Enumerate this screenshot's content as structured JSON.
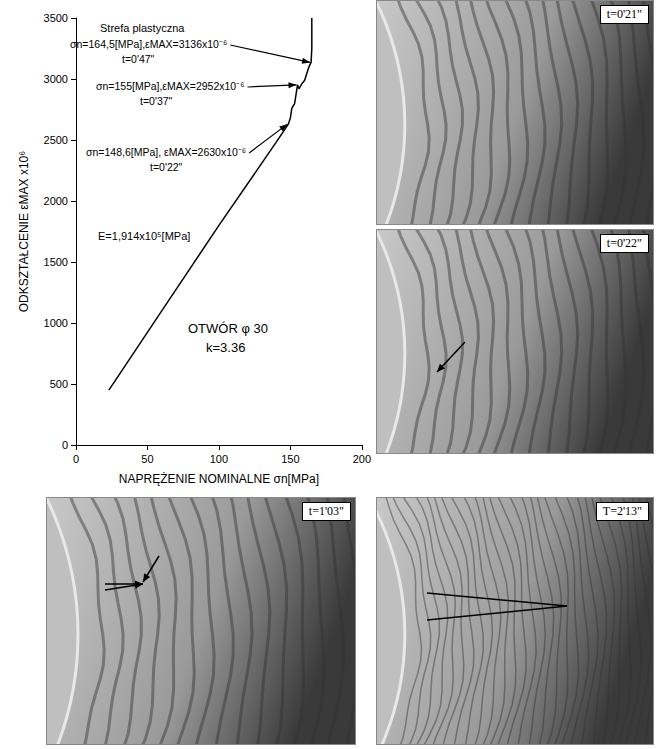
{
  "chart_data": {
    "type": "line",
    "x_label": "NAPRĘŻENIE NOMINALNE σn[MPa]",
    "y_label": "ODKSZTAŁCENIE εMAX x10⁶",
    "x": [
      23,
      60,
      100,
      140,
      148.6,
      150,
      151,
      153,
      155,
      156,
      158,
      160,
      163,
      164.5,
      165,
      165
    ],
    "values": [
      450,
      1100,
      1800,
      2480,
      2630,
      2680,
      2760,
      2800,
      2952,
      2920,
      2960,
      2990,
      3100,
      3136,
      3250,
      3500
    ],
    "color": "#000000",
    "xlim": [
      0,
      200
    ],
    "xticks": [
      0,
      50,
      100,
      150,
      200
    ],
    "ylim": [
      0,
      3500
    ],
    "yticks": [
      0,
      500,
      1000,
      1500,
      2000,
      2500,
      3000,
      3500
    ],
    "grid": false,
    "texts": [
      "Strefa plastyczna",
      "E=1,914x10⁵[MPa]",
      "OTWÓR φ 30",
      "k=3.36"
    ],
    "annotations": [
      {
        "lines": [
          "σn=164,5[MPa],εMAX=3136x10⁻⁶",
          "t=0'47\""
        ],
        "x": 164.5,
        "y": 3136
      },
      {
        "lines": [
          "σn=155[MPa],εMAX=2952x10⁻⁶",
          "t=0'37\""
        ],
        "x": 155,
        "y": 2952
      },
      {
        "lines": [
          "σn=148,6[MPa], εMAX=2630x10⁻⁶",
          "t=0'22\""
        ],
        "x": 148.6,
        "y": 2630
      }
    ]
  },
  "photos": [
    {
      "label": "t=0'21\""
    },
    {
      "label": "t=0'22\""
    },
    {
      "label": "t=1'03\""
    },
    {
      "label": "T=2'13\""
    }
  ]
}
